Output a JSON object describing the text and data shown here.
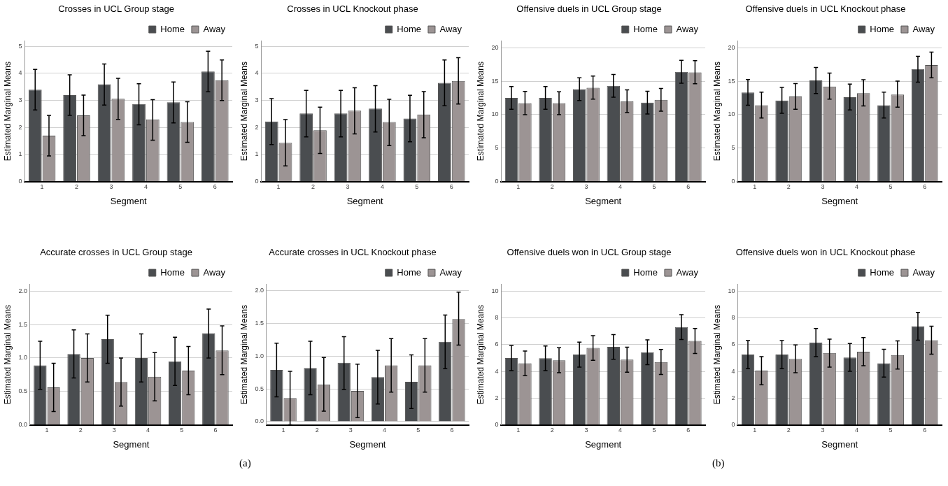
{
  "chart_data": [
    {
      "type": "bar",
      "title": "Crosses in UCL Group stage",
      "xlabel": "Segment",
      "ylabel": "Estimated Marginal Means",
      "categories": [
        "1",
        "2",
        "3",
        "4",
        "5",
        "6"
      ],
      "ylim": [
        0,
        5.2
      ],
      "yticks": [
        0,
        1,
        2,
        3,
        4,
        5
      ],
      "grid": "y",
      "legend": "top right",
      "series": [
        {
          "name": "Home",
          "color": "#4a4d50",
          "values": [
            3.4,
            3.2,
            3.6,
            2.87,
            2.93,
            4.07
          ],
          "errors": [
            [
              2.65,
              4.15
            ],
            [
              2.45,
              3.95
            ],
            [
              2.83,
              4.35
            ],
            [
              2.1,
              3.62
            ],
            [
              2.17,
              3.68
            ],
            [
              3.32,
              4.82
            ]
          ]
        },
        {
          "name": "Away",
          "color": "#9c9494",
          "values": [
            1.7,
            2.45,
            3.06,
            2.3,
            2.2,
            3.75
          ],
          "errors": [
            [
              0.95,
              2.45
            ],
            [
              1.7,
              3.2
            ],
            [
              2.3,
              3.82
            ],
            [
              1.53,
              3.03
            ],
            [
              1.45,
              2.95
            ],
            [
              3.0,
              4.5
            ]
          ]
        }
      ]
    },
    {
      "type": "bar",
      "title": "Crosses in UCL Knockout phase",
      "xlabel": "Segment",
      "ylabel": "Estimated Marginal Means",
      "categories": [
        "1",
        "2",
        "3",
        "4",
        "5",
        "6"
      ],
      "ylim": [
        0,
        5.2
      ],
      "yticks": [
        0,
        1,
        2,
        3,
        4,
        5
      ],
      "grid": "y",
      "legend": "top right",
      "series": [
        {
          "name": "Home",
          "color": "#4a4d50",
          "values": [
            2.22,
            2.52,
            2.52,
            2.7,
            2.33,
            3.65
          ],
          "errors": [
            [
              1.37,
              3.07
            ],
            [
              1.65,
              3.37
            ],
            [
              1.65,
              3.37
            ],
            [
              1.83,
              3.55
            ],
            [
              1.47,
              3.19
            ],
            [
              2.8,
              4.5
            ]
          ]
        },
        {
          "name": "Away",
          "color": "#9c9494",
          "values": [
            1.43,
            1.9,
            2.62,
            2.2,
            2.48,
            3.72
          ],
          "errors": [
            [
              0.58,
              2.29
            ],
            [
              1.04,
              2.75
            ],
            [
              1.76,
              3.47
            ],
            [
              1.33,
              3.04
            ],
            [
              1.62,
              3.33
            ],
            [
              2.87,
              4.58
            ]
          ]
        }
      ]
    },
    {
      "type": "bar",
      "title": "Offensive duels in UCL Group stage",
      "xlabel": "Segment",
      "ylabel": "Estimated Marginal Means",
      "categories": [
        "1",
        "2",
        "3",
        "4",
        "5",
        "6"
      ],
      "ylim": [
        0,
        21
      ],
      "yticks": [
        0,
        5,
        10,
        15,
        20
      ],
      "grid": "y",
      "legend": "top right",
      "series": [
        {
          "name": "Home",
          "color": "#4a4d50",
          "values": [
            12.5,
            12.5,
            13.8,
            14.3,
            11.8,
            16.4
          ],
          "errors": [
            [
              10.8,
              14.2
            ],
            [
              10.8,
              14.2
            ],
            [
              12.1,
              15.5
            ],
            [
              12.6,
              16.0
            ],
            [
              10.1,
              13.5
            ],
            [
              14.7,
              18.1
            ]
          ]
        },
        {
          "name": "Away",
          "color": "#9c9494",
          "values": [
            11.7,
            11.7,
            14.0,
            12.0,
            12.2,
            16.3
          ],
          "errors": [
            [
              10.0,
              13.45
            ],
            [
              10.0,
              13.4
            ],
            [
              12.3,
              15.75
            ],
            [
              10.3,
              13.7
            ],
            [
              10.5,
              13.9
            ],
            [
              14.6,
              18.05
            ]
          ]
        }
      ]
    },
    {
      "type": "bar",
      "title": "Offensive duels in UCL Knockout phase",
      "xlabel": "Segment",
      "ylabel": "Estimated Marginal Means",
      "categories": [
        "1",
        "2",
        "3",
        "4",
        "5",
        "6"
      ],
      "ylim": [
        0,
        21
      ],
      "yticks": [
        0,
        5,
        10,
        15,
        20
      ],
      "grid": "y",
      "legend": "top right",
      "series": [
        {
          "name": "Home",
          "color": "#4a4d50",
          "values": [
            13.3,
            12.1,
            15.1,
            12.6,
            11.4,
            16.8
          ],
          "errors": [
            [
              11.4,
              15.25
            ],
            [
              10.2,
              14.05
            ],
            [
              13.15,
              17.05
            ],
            [
              10.7,
              14.55
            ],
            [
              9.5,
              13.35
            ],
            [
              14.85,
              18.7
            ]
          ]
        },
        {
          "name": "Away",
          "color": "#9c9494",
          "values": [
            11.4,
            12.7,
            14.2,
            13.2,
            13.0,
            17.4
          ],
          "errors": [
            [
              9.5,
              13.35
            ],
            [
              10.8,
              14.65
            ],
            [
              12.3,
              16.2
            ],
            [
              11.3,
              15.2
            ],
            [
              11.1,
              15.0
            ],
            [
              15.5,
              19.35
            ]
          ]
        }
      ]
    },
    {
      "type": "bar",
      "title": "Accurate crosses in UCL Group stage",
      "xlabel": "Segment",
      "ylabel": "Estimated Marginal Means",
      "categories": [
        "1",
        "2",
        "3",
        "4",
        "5",
        "6"
      ],
      "ylim": [
        0,
        2.1
      ],
      "yticks": [
        {
          "value": 0,
          "label": "0.0"
        },
        0.5,
        {
          "value": 1,
          "label": "1.0"
        },
        1.5,
        {
          "value": 2,
          "label": "2.0"
        }
      ],
      "grid": "y",
      "legend": "top right",
      "series": [
        {
          "name": "Home",
          "color": "#4a4d50",
          "values": [
            0.89,
            1.06,
            1.28,
            1.0,
            0.95,
            1.37
          ],
          "errors": [
            [
              0.53,
              1.25
            ],
            [
              0.7,
              1.42
            ],
            [
              0.92,
              1.64
            ],
            [
              0.64,
              1.36
            ],
            [
              0.59,
              1.31
            ],
            [
              1.0,
              1.73
            ]
          ]
        },
        {
          "name": "Away",
          "color": "#9c9494",
          "values": [
            0.56,
            1.0,
            0.64,
            0.72,
            0.81,
            1.11
          ],
          "errors": [
            [
              0.2,
              0.92
            ],
            [
              0.64,
              1.36
            ],
            [
              0.28,
              1.0
            ],
            [
              0.36,
              1.08
            ],
            [
              0.45,
              1.17
            ],
            [
              0.75,
              1.48
            ]
          ]
        }
      ]
    },
    {
      "type": "bar",
      "title": "Accurate crosses in UCL Knockout phase",
      "xlabel": "Segment",
      "ylabel": "Estimated Marginal Means",
      "categories": [
        "1",
        "2",
        "3",
        "4",
        "5",
        "6"
      ],
      "ylim": [
        -0.05,
        2.1
      ],
      "yticks": [
        {
          "value": 0,
          "label": "0.0"
        },
        0.5,
        {
          "value": 1,
          "label": "1.0"
        },
        1.5,
        {
          "value": 2,
          "label": "2.0"
        }
      ],
      "grid": "y",
      "legend": "top right",
      "annotations": [
        "(a)"
      ],
      "series": [
        {
          "name": "Home",
          "color": "#4a4d50",
          "values": [
            0.79,
            0.82,
            0.9,
            0.68,
            0.61,
            1.22
          ],
          "errors": [
            [
              0.38,
              1.2
            ],
            [
              0.41,
              1.23
            ],
            [
              0.49,
              1.3
            ],
            [
              0.27,
              1.09
            ],
            [
              0.2,
              1.02
            ],
            [
              0.81,
              1.63
            ]
          ]
        },
        {
          "name": "Away",
          "color": "#9c9494",
          "values": [
            0.36,
            0.57,
            0.47,
            0.86,
            0.86,
            1.57
          ],
          "errors": [
            [
              -0.05,
              0.77
            ],
            [
              0.16,
              0.98
            ],
            [
              0.06,
              0.88
            ],
            [
              0.45,
              1.27
            ],
            [
              0.45,
              1.27
            ],
            [
              1.17,
              1.98
            ]
          ]
        }
      ]
    },
    {
      "type": "bar",
      "title": "Offensive duels won in UCL Group stage",
      "xlabel": "Segment",
      "ylabel": "Estimated Marginal Means",
      "categories": [
        "1",
        "2",
        "3",
        "4",
        "5",
        "6"
      ],
      "ylim": [
        0,
        10.5
      ],
      "yticks": [
        0,
        2,
        4,
        6,
        8,
        10
      ],
      "grid": "y",
      "legend": "top right",
      "series": [
        {
          "name": "Home",
          "color": "#4a4d50",
          "values": [
            5.0,
            4.98,
            5.25,
            5.83,
            5.42,
            7.3
          ],
          "errors": [
            [
              4.05,
              5.93
            ],
            [
              4.05,
              5.9
            ],
            [
              4.32,
              6.18
            ],
            [
              4.9,
              6.75
            ],
            [
              4.5,
              6.35
            ],
            [
              6.38,
              8.23
            ]
          ]
        },
        {
          "name": "Away",
          "color": "#9c9494",
          "values": [
            4.6,
            4.83,
            5.75,
            4.87,
            4.7,
            6.27
          ],
          "errors": [
            [
              3.67,
              5.52
            ],
            [
              3.9,
              5.77
            ],
            [
              4.82,
              6.67
            ],
            [
              3.93,
              5.8
            ],
            [
              3.77,
              5.63
            ],
            [
              5.33,
              7.2
            ]
          ]
        }
      ]
    },
    {
      "type": "bar",
      "title": "Offensive duels won in UCL Knockout phase",
      "xlabel": "Segment",
      "ylabel": "Estimated Marginal Means",
      "categories": [
        "1",
        "2",
        "3",
        "4",
        "5",
        "6"
      ],
      "ylim": [
        0,
        10.5
      ],
      "yticks": [
        0,
        2,
        4,
        6,
        8,
        10
      ],
      "grid": "y",
      "legend": "top right",
      "annotations": [
        "(b)"
      ],
      "series": [
        {
          "name": "Home",
          "color": "#4a4d50",
          "values": [
            5.25,
            5.25,
            6.15,
            5.03,
            4.6,
            7.37
          ],
          "errors": [
            [
              4.2,
              6.3
            ],
            [
              4.2,
              6.3
            ],
            [
              5.1,
              7.2
            ],
            [
              4.0,
              6.08
            ],
            [
              3.57,
              5.65
            ],
            [
              6.33,
              8.4
            ]
          ]
        },
        {
          "name": "Away",
          "color": "#9c9494",
          "values": [
            4.05,
            4.93,
            5.37,
            5.47,
            5.22,
            6.33
          ],
          "errors": [
            [
              3.0,
              5.1
            ],
            [
              3.9,
              5.98
            ],
            [
              4.32,
              6.4
            ],
            [
              4.42,
              6.52
            ],
            [
              4.17,
              6.27
            ],
            [
              5.28,
              7.37
            ]
          ]
        }
      ]
    }
  ]
}
